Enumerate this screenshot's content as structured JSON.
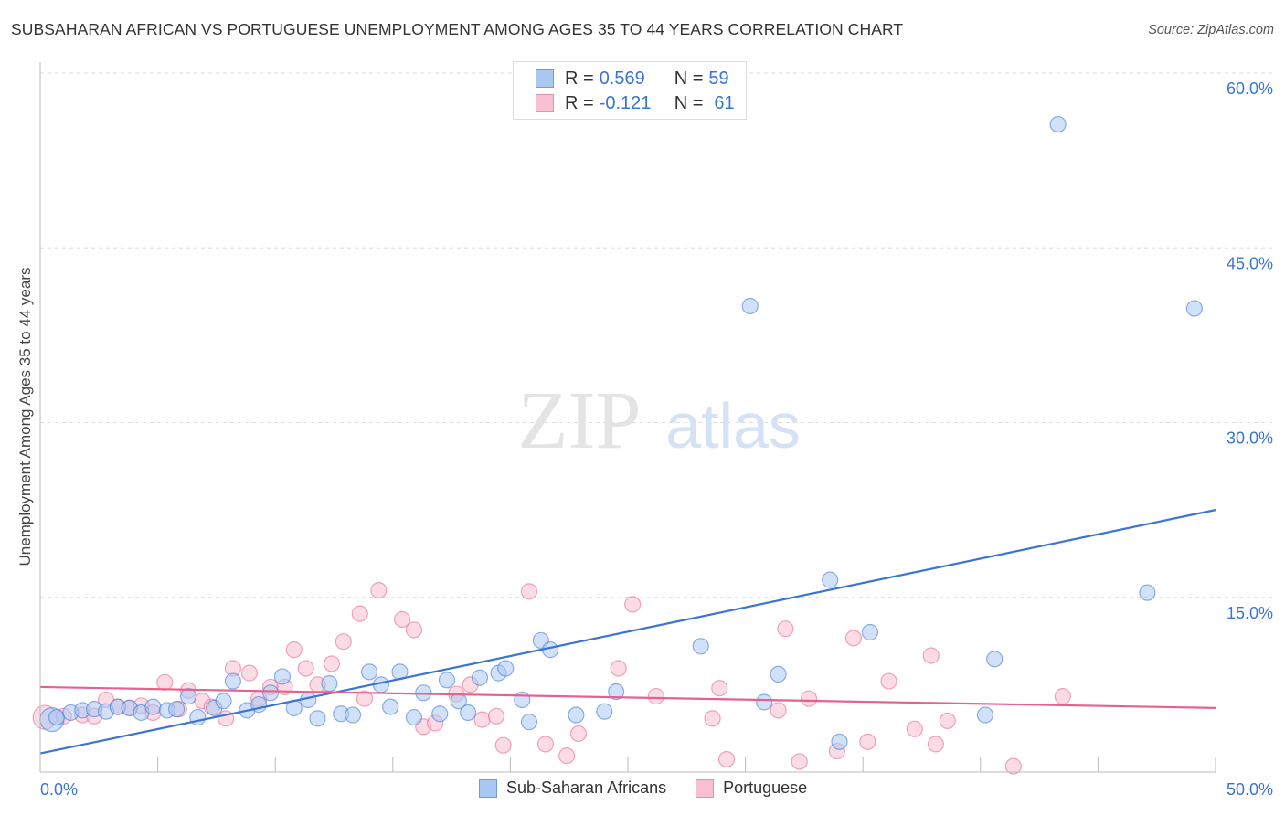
{
  "title": "SUBSAHARAN AFRICAN VS PORTUGUESE UNEMPLOYMENT AMONG AGES 35 TO 44 YEARS CORRELATION CHART",
  "source": "Source: ZipAtlas.com",
  "watermark": "ZIPatlas",
  "legend": {
    "rows": [
      {
        "r_label": "R = ",
        "r": "0.569",
        "n_label": "N = ",
        "n": "59"
      },
      {
        "r_label": "R = ",
        "r": "-0.121",
        "n_label": "N = ",
        "n": "61"
      }
    ]
  },
  "chart_data": {
    "type": "scatter",
    "title": "SUBSAHARAN AFRICAN VS PORTUGUESE UNEMPLOYMENT AMONG AGES 35 TO 44 YEARS CORRELATION CHART",
    "xlabel": "",
    "ylabel": "Unemployment Among Ages 35 to 44 years",
    "xlim": [
      0,
      50
    ],
    "ylim": [
      0,
      60
    ],
    "x_tick_labels": [
      "0.0%",
      "50.0%"
    ],
    "y_ticks": [
      15,
      30,
      45,
      60
    ],
    "y_tick_labels": [
      "15.0%",
      "30.0%",
      "45.0%",
      "60.0%"
    ],
    "grid": true,
    "legend_position": "top-center",
    "series": [
      {
        "name": "Sub-Saharan Africans",
        "color": "#3b74d4",
        "fill": "#a9c8f2",
        "trend": [
          [
            0,
            1.6
          ],
          [
            50,
            22.5
          ]
        ],
        "points": [
          [
            0.5,
            4.5
          ],
          [
            0.7,
            4.7
          ],
          [
            1.3,
            5.1
          ],
          [
            1.8,
            5.3
          ],
          [
            2.3,
            5.4
          ],
          [
            2.8,
            5.2
          ],
          [
            3.3,
            5.6
          ],
          [
            3.8,
            5.5
          ],
          [
            4.3,
            5.1
          ],
          [
            4.8,
            5.6
          ],
          [
            5.4,
            5.3
          ],
          [
            5.8,
            5.4
          ],
          [
            6.3,
            6.5
          ],
          [
            6.7,
            4.7
          ],
          [
            7.4,
            5.5
          ],
          [
            7.8,
            6.1
          ],
          [
            8.2,
            7.8
          ],
          [
            8.8,
            5.3
          ],
          [
            9.3,
            5.8
          ],
          [
            9.8,
            6.8
          ],
          [
            10.3,
            8.2
          ],
          [
            10.8,
            5.5
          ],
          [
            11.4,
            6.2
          ],
          [
            11.8,
            4.6
          ],
          [
            12.3,
            7.6
          ],
          [
            12.8,
            5.0
          ],
          [
            13.3,
            4.9
          ],
          [
            14.0,
            8.6
          ],
          [
            14.5,
            7.5
          ],
          [
            14.9,
            5.6
          ],
          [
            15.3,
            8.6
          ],
          [
            15.9,
            4.7
          ],
          [
            16.3,
            6.8
          ],
          [
            17.0,
            5.0
          ],
          [
            17.3,
            7.9
          ],
          [
            17.8,
            6.1
          ],
          [
            18.2,
            5.1
          ],
          [
            18.7,
            8.1
          ],
          [
            19.5,
            8.5
          ],
          [
            19.8,
            8.9
          ],
          [
            20.5,
            6.2
          ],
          [
            20.8,
            4.3
          ],
          [
            21.3,
            11.3
          ],
          [
            21.7,
            10.5
          ],
          [
            22.8,
            4.9
          ],
          [
            24.0,
            5.2
          ],
          [
            24.5,
            6.9
          ],
          [
            28.1,
            10.8
          ],
          [
            30.2,
            40.0
          ],
          [
            30.8,
            6.0
          ],
          [
            31.4,
            8.4
          ],
          [
            33.6,
            16.5
          ],
          [
            34.0,
            2.6
          ],
          [
            35.3,
            12.0
          ],
          [
            40.2,
            4.9
          ],
          [
            40.6,
            9.7
          ],
          [
            43.3,
            55.6
          ],
          [
            47.1,
            15.4
          ],
          [
            49.1,
            39.8
          ]
        ]
      },
      {
        "name": "Portuguese",
        "color": "#e8608c",
        "fill": "#f7bfd0",
        "trend": [
          [
            0,
            7.3
          ],
          [
            50,
            5.5
          ]
        ],
        "points": [
          [
            0.2,
            4.7
          ],
          [
            1.0,
            4.8
          ],
          [
            1.8,
            4.9
          ],
          [
            2.3,
            4.8
          ],
          [
            2.8,
            6.2
          ],
          [
            3.3,
            5.6
          ],
          [
            3.8,
            5.5
          ],
          [
            4.3,
            5.7
          ],
          [
            4.8,
            5.1
          ],
          [
            5.3,
            7.7
          ],
          [
            5.9,
            5.4
          ],
          [
            6.3,
            7.0
          ],
          [
            6.9,
            6.1
          ],
          [
            7.3,
            5.6
          ],
          [
            7.9,
            4.6
          ],
          [
            8.2,
            8.9
          ],
          [
            8.9,
            8.5
          ],
          [
            9.3,
            6.3
          ],
          [
            9.8,
            7.3
          ],
          [
            10.4,
            7.3
          ],
          [
            10.8,
            10.5
          ],
          [
            11.3,
            8.9
          ],
          [
            11.8,
            7.5
          ],
          [
            12.4,
            9.3
          ],
          [
            12.9,
            11.2
          ],
          [
            13.6,
            13.6
          ],
          [
            13.8,
            6.3
          ],
          [
            14.4,
            15.6
          ],
          [
            15.4,
            13.1
          ],
          [
            15.9,
            12.2
          ],
          [
            16.3,
            3.9
          ],
          [
            16.8,
            4.2
          ],
          [
            17.7,
            6.7
          ],
          [
            18.3,
            7.5
          ],
          [
            18.8,
            4.5
          ],
          [
            19.4,
            4.8
          ],
          [
            19.7,
            2.3
          ],
          [
            20.8,
            15.5
          ],
          [
            21.5,
            2.4
          ],
          [
            22.4,
            1.4
          ],
          [
            22.9,
            3.3
          ],
          [
            24.6,
            8.9
          ],
          [
            25.2,
            14.4
          ],
          [
            26.2,
            6.5
          ],
          [
            28.6,
            4.6
          ],
          [
            28.9,
            7.2
          ],
          [
            29.2,
            1.1
          ],
          [
            31.4,
            5.3
          ],
          [
            31.7,
            12.3
          ],
          [
            32.3,
            0.9
          ],
          [
            32.7,
            6.3
          ],
          [
            33.9,
            1.8
          ],
          [
            34.6,
            11.5
          ],
          [
            35.2,
            2.6
          ],
          [
            36.1,
            7.8
          ],
          [
            37.2,
            3.7
          ],
          [
            37.9,
            10.0
          ],
          [
            38.1,
            2.4
          ],
          [
            38.6,
            4.4
          ],
          [
            41.4,
            0.5
          ],
          [
            43.5,
            6.5
          ]
        ]
      }
    ]
  }
}
